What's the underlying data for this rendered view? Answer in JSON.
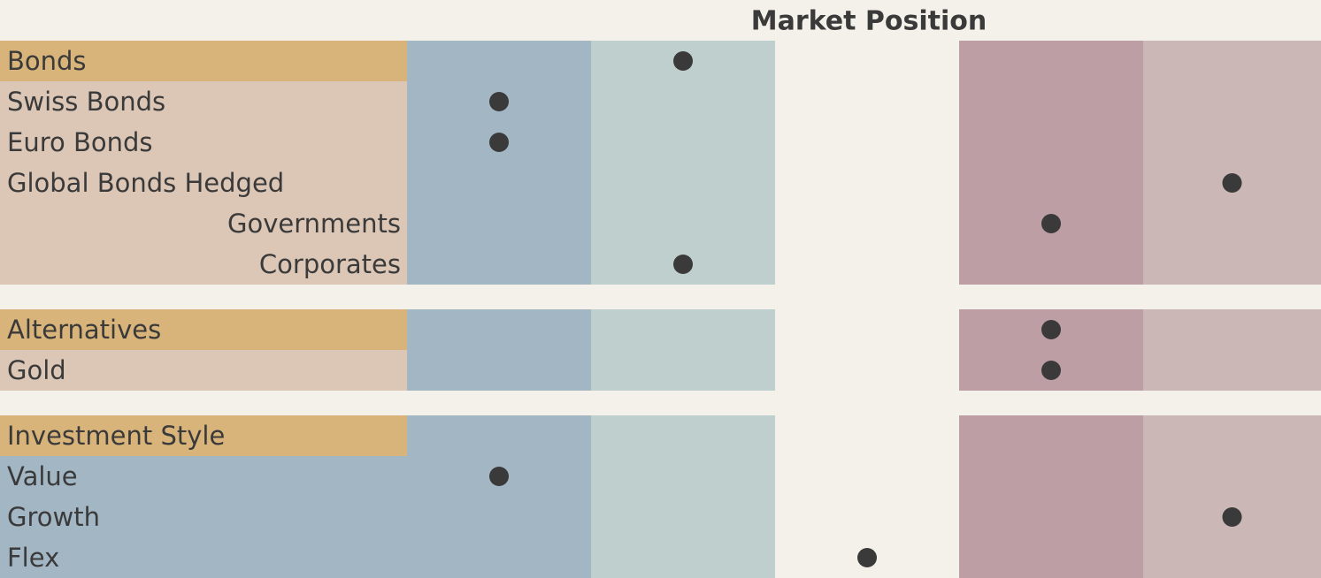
{
  "header": {
    "title": "Market Position"
  },
  "column_colors": [
    "#a3b6c4",
    "#becfce",
    "#f4f1eb",
    "#bd9ea4",
    "#cbb8b6"
  ],
  "header_color": "#d9b47a",
  "dot_color": "#3a3a3a",
  "sections": [
    {
      "title": "Bonds",
      "position": 2,
      "label_color": "#dcc7b6",
      "rows": [
        {
          "label": "Swiss Bonds",
          "position": 1
        },
        {
          "label": "Euro Bonds",
          "position": 1
        },
        {
          "label": "Global Bonds Hedged",
          "position": 5
        },
        {
          "label": "Governments",
          "position": 4,
          "indented": true
        },
        {
          "label": "Corporates",
          "position": 2,
          "indented": true
        }
      ]
    },
    {
      "title": "Alternatives",
      "position": 4,
      "label_color": "#dcc7b6",
      "rows": [
        {
          "label": "Gold",
          "position": 4
        }
      ]
    },
    {
      "title": "Investment Style",
      "position": null,
      "label_color": "#a3b6c4",
      "rows": [
        {
          "label": "Value",
          "position": 1
        },
        {
          "label": "Growth",
          "position": 5
        },
        {
          "label": "Flex",
          "position": 3
        }
      ]
    }
  ]
}
